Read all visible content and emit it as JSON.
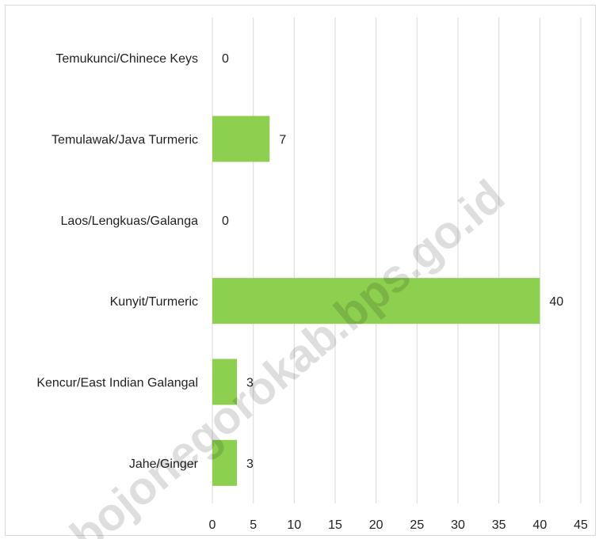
{
  "chart_data": {
    "type": "bar",
    "orientation": "horizontal",
    "categories": [
      "Temukunci/Chinece Keys",
      "Temulawak/Java Turmeric",
      "Laos/Lengkuas/Galanga",
      "Kunyit/Turmeric",
      "Kencur/East Indian Galangal",
      "Jahe/Ginger"
    ],
    "values": [
      0,
      7,
      0,
      40,
      3,
      3
    ],
    "xlim": [
      0,
      45
    ],
    "xticks": [
      0,
      5,
      10,
      15,
      20,
      25,
      30,
      35,
      40,
      45
    ],
    "grid": true,
    "bar_color": "#8dcf4f",
    "grid_color": "#d9d9d9",
    "data_labels": true
  },
  "watermark": "bojonegorokab.bps.go.id"
}
